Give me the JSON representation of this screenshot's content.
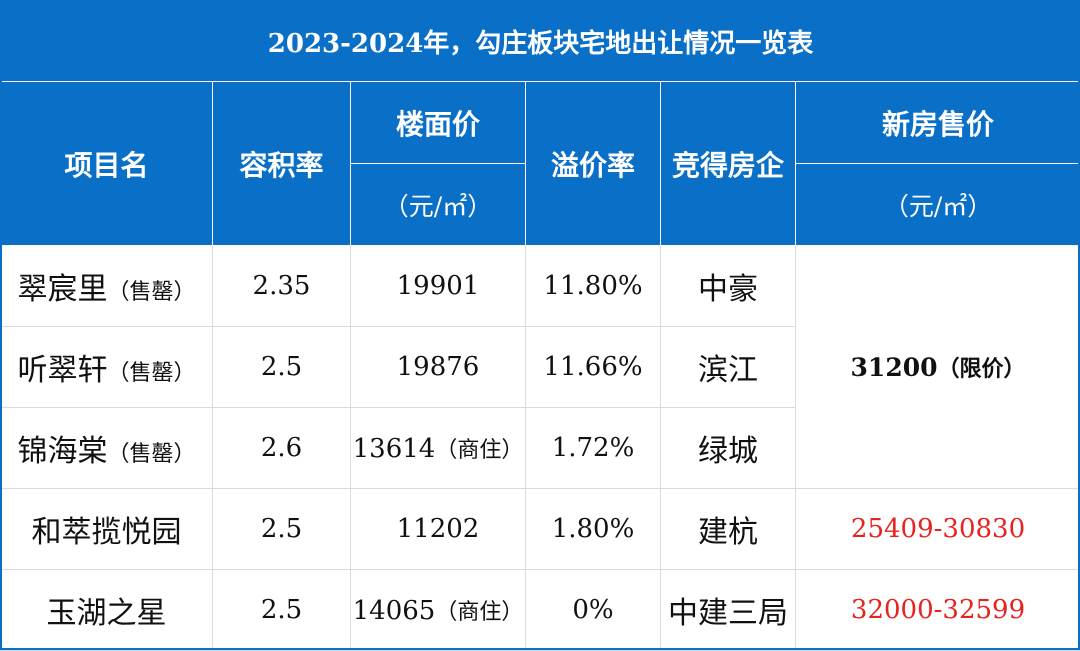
{
  "title": "2023-2024年，勾庄板块宅地出让情况一览表",
  "headers": {
    "project": "项目名",
    "far": "容积率",
    "floor_price": "楼面价",
    "floor_price_unit": "（元/㎡）",
    "premium": "溢价率",
    "developer": "竞得房企",
    "new_price": "新房售价",
    "new_price_unit": "（元/㎡）"
  },
  "rows": [
    {
      "name": "翠宸里",
      "tag": "（售罄）",
      "far": "2.35",
      "floor_price": "19901",
      "floor_tag": "",
      "premium": "11.80%",
      "developer": "中豪"
    },
    {
      "name": "听翠轩",
      "tag": "（售罄）",
      "far": "2.5",
      "floor_price": "19876",
      "floor_tag": "",
      "premium": "11.66%",
      "developer": "滨江"
    },
    {
      "name": "锦海棠",
      "tag": "（售罄）",
      "far": "2.6",
      "floor_price": "13614",
      "floor_tag": "（商住）",
      "premium": "1.72%",
      "developer": "绿城"
    },
    {
      "name": "和萃揽悦园",
      "tag": "",
      "far": "2.5",
      "floor_price": "11202",
      "floor_tag": "",
      "premium": "1.80%",
      "developer": "建杭",
      "new_price": "25409-30830"
    },
    {
      "name": "玉湖之星",
      "tag": "",
      "far": "2.5",
      "floor_price": "14065",
      "floor_tag": "（商住）",
      "premium": "0%",
      "developer": "中建三局",
      "new_price": "32000-32599"
    }
  ],
  "merged_price": {
    "value": "31200",
    "tag": "（限价）"
  },
  "colors": {
    "header_bg": "#0a6fc7",
    "header_text": "#ffffff",
    "highlight_red": "#e8231d"
  }
}
